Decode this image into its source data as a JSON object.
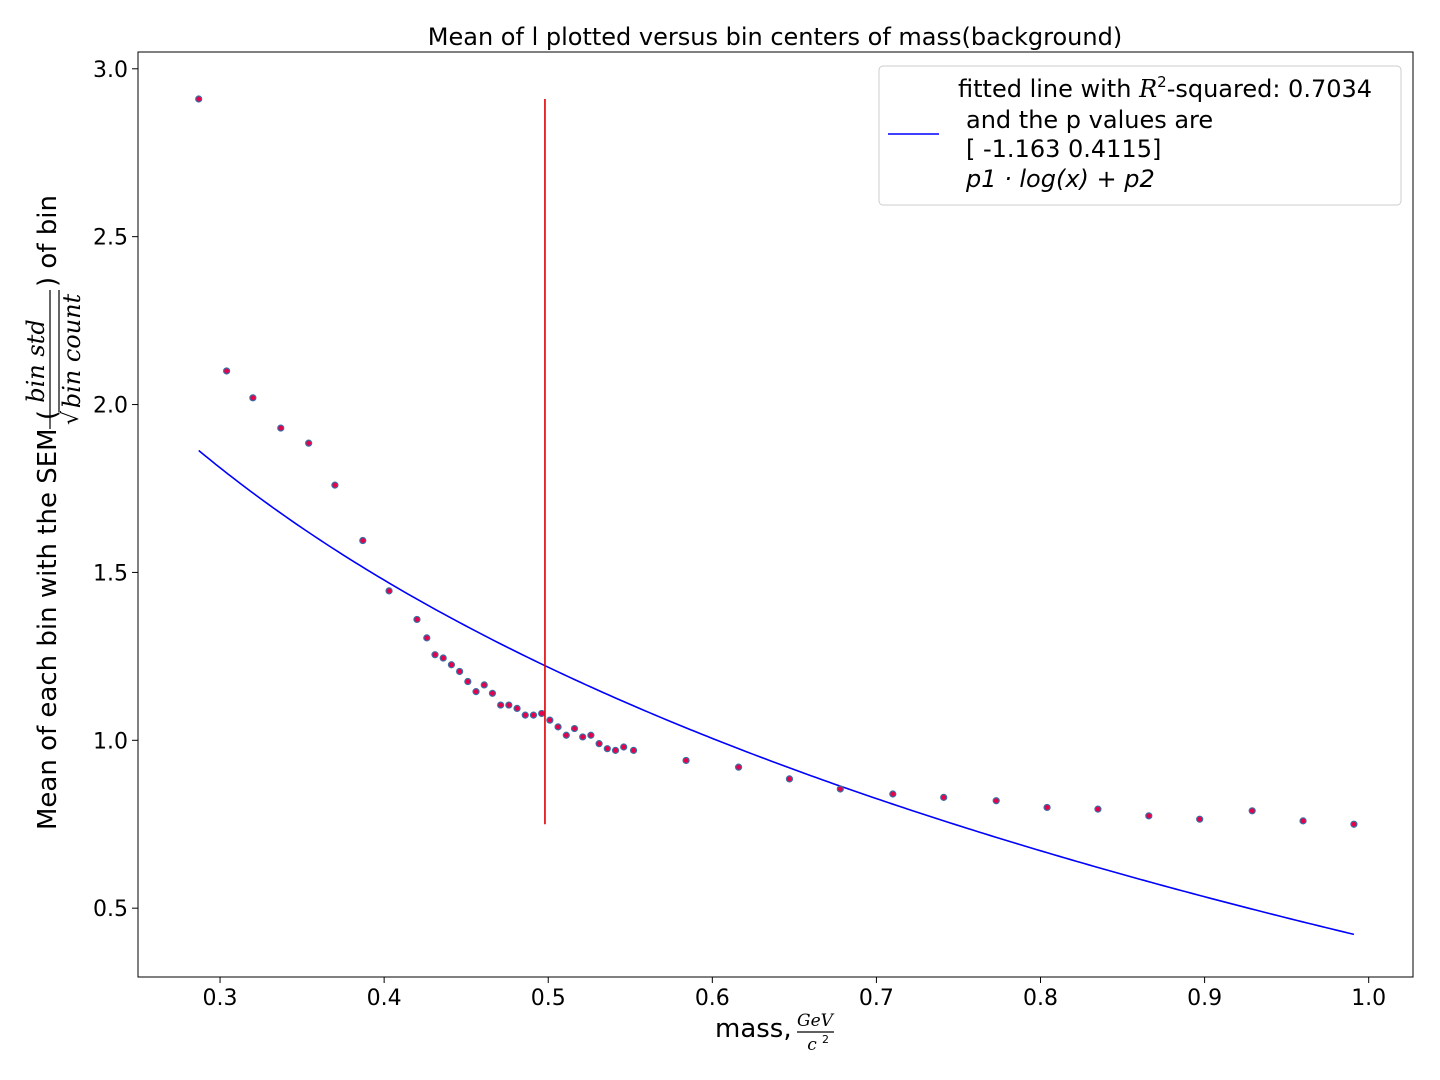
{
  "chart_data": {
    "type": "scatter",
    "title": "Mean of l plotted versus bin centers of mass(background)",
    "xlabel": "mass,",
    "xlabel_unit_num": "GeV",
    "xlabel_unit_den": "c",
    "xlabel_unit_den_exp": "2",
    "ylabel_prefix": "Mean of each bin with the SEM (",
    "ylabel_frac_num": "bin std",
    "ylabel_frac_den": "bin count",
    "ylabel_suffix": ") of bin",
    "xlim": [
      0.25,
      1.027
    ],
    "ylim": [
      0.295,
      3.05
    ],
    "xticks": [
      0.3,
      0.4,
      0.5,
      0.6,
      0.7,
      0.8,
      0.9,
      1.0
    ],
    "xtick_labels": [
      "0.3",
      "0.4",
      "0.5",
      "0.6",
      "0.7",
      "0.8",
      "0.9",
      "1.0"
    ],
    "yticks": [
      0.5,
      1.0,
      1.5,
      2.0,
      2.5,
      3.0
    ],
    "ytick_labels": [
      "0.5",
      "1.0",
      "1.5",
      "2.0",
      "2.5",
      "3.0"
    ],
    "grid": false,
    "legend_position": "top-right",
    "series": [
      {
        "kind": "points",
        "marker_color": "#e8004a",
        "edge_color": "#3a6ea5",
        "x": [
          0.287,
          0.304,
          0.32,
          0.337,
          0.354,
          0.37,
          0.387,
          0.403,
          0.42,
          0.426,
          0.431,
          0.436,
          0.441,
          0.446,
          0.451,
          0.456,
          0.461,
          0.466,
          0.471,
          0.476,
          0.481,
          0.486,
          0.491,
          0.496,
          0.501,
          0.506,
          0.511,
          0.516,
          0.521,
          0.526,
          0.531,
          0.536,
          0.541,
          0.546,
          0.552,
          0.584,
          0.616,
          0.647,
          0.678,
          0.71,
          0.741,
          0.773,
          0.804,
          0.835,
          0.866,
          0.897,
          0.929,
          0.96,
          0.991
        ],
        "y": [
          2.91,
          2.1,
          2.02,
          1.93,
          1.885,
          1.76,
          1.595,
          1.445,
          1.36,
          1.305,
          1.255,
          1.245,
          1.225,
          1.205,
          1.175,
          1.145,
          1.165,
          1.14,
          1.105,
          1.105,
          1.095,
          1.075,
          1.075,
          1.08,
          1.06,
          1.04,
          1.015,
          1.035,
          1.01,
          1.015,
          0.99,
          0.975,
          0.97,
          0.98,
          0.97,
          0.94,
          0.92,
          0.885,
          0.855,
          0.84,
          0.83,
          0.82,
          0.8,
          0.795,
          0.775,
          0.765,
          0.79,
          0.76,
          0.75
        ]
      },
      {
        "kind": "fit",
        "name": "fitted line with R2-squared: 0.7034 and the p values are [ -1.163  0.4115] p1·log(x)+p2",
        "color": "#0000ff",
        "p1": -1.163,
        "p2": 0.4115,
        "x_range": [
          0.287,
          0.991
        ]
      }
    ],
    "annotations": [
      {
        "kind": "vline",
        "x": 0.498,
        "y_from": 0.75,
        "y_to": 2.91,
        "color": "#e00000"
      }
    ],
    "legend": {
      "line1_pre": "fitted line with ",
      "line1_math_R": "R",
      "line1_math_sup": "2",
      "line1_post": "-squared: 0.7034",
      "line2": "and the p values are",
      "line3": "[ -1.163  0.4115]",
      "line4_math": "p1 · log(x) + p2",
      "line_color": "#0000ff"
    }
  }
}
